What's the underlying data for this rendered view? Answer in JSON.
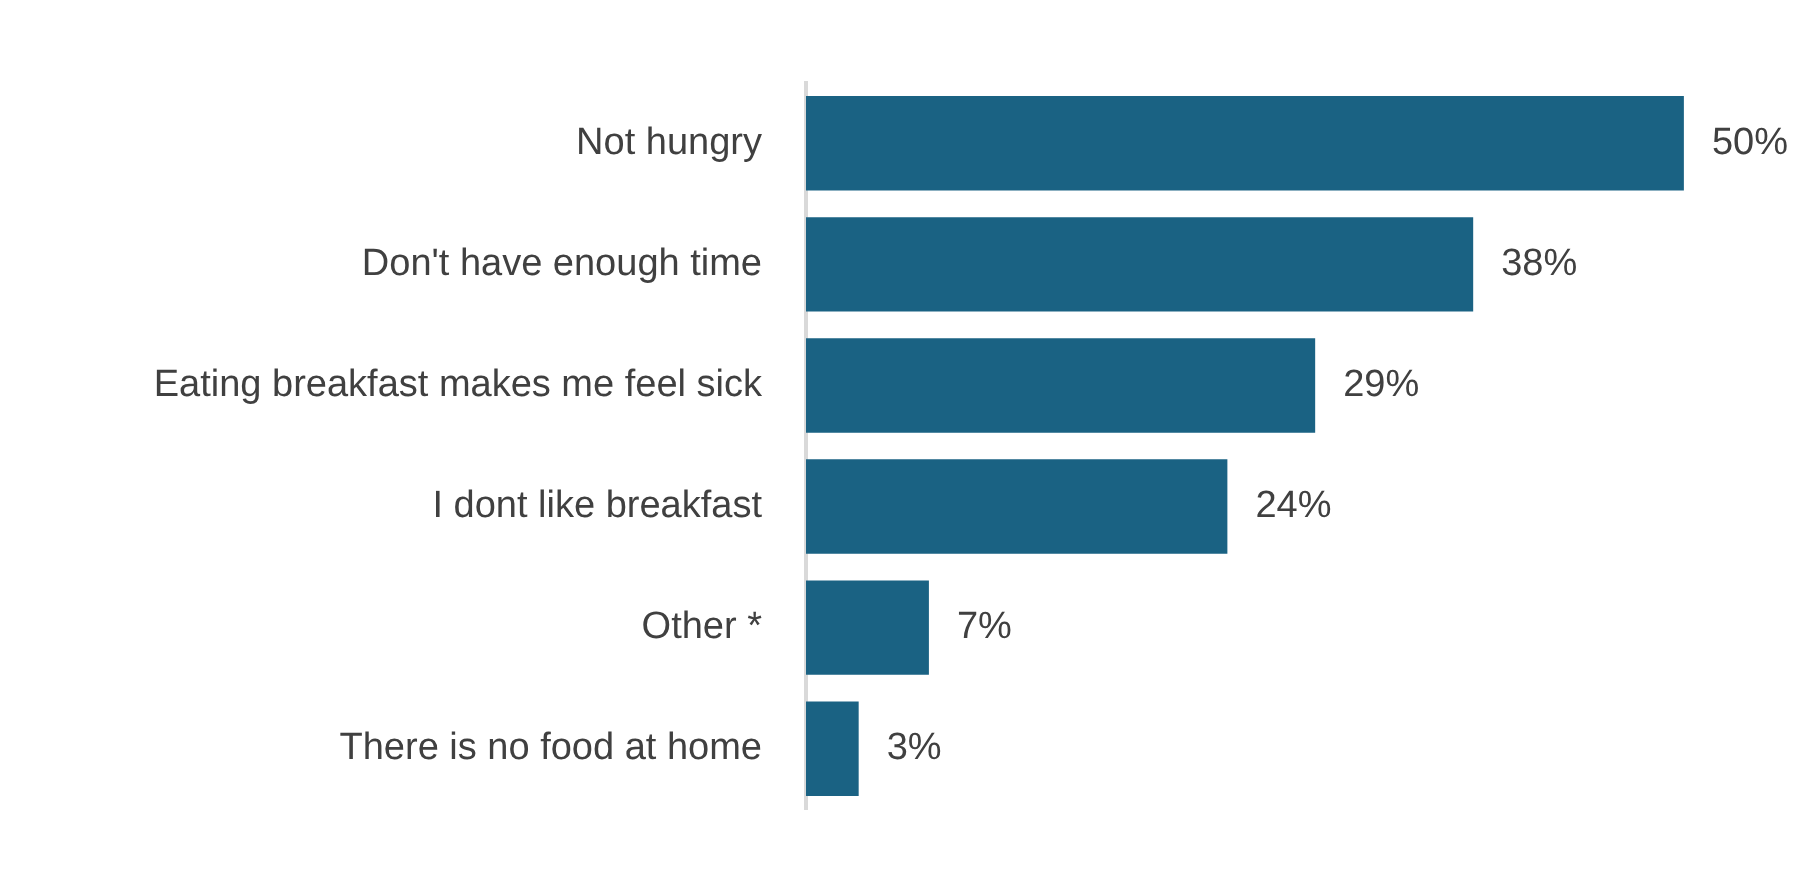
{
  "chart_data": {
    "type": "bar",
    "orientation": "horizontal",
    "tick_labels": "y",
    "categories": [
      "Not hungry",
      "Don't have enough time",
      "Eating breakfast makes me feel sick",
      "I dont like breakfast",
      "Other *",
      "There is no food at home"
    ],
    "values": [
      50,
      38,
      29,
      24,
      7,
      3
    ],
    "value_labels": [
      "50%",
      "38%",
      "29%",
      "24%",
      "7%",
      "3%"
    ],
    "color": "#1a6283",
    "legend": false
  }
}
